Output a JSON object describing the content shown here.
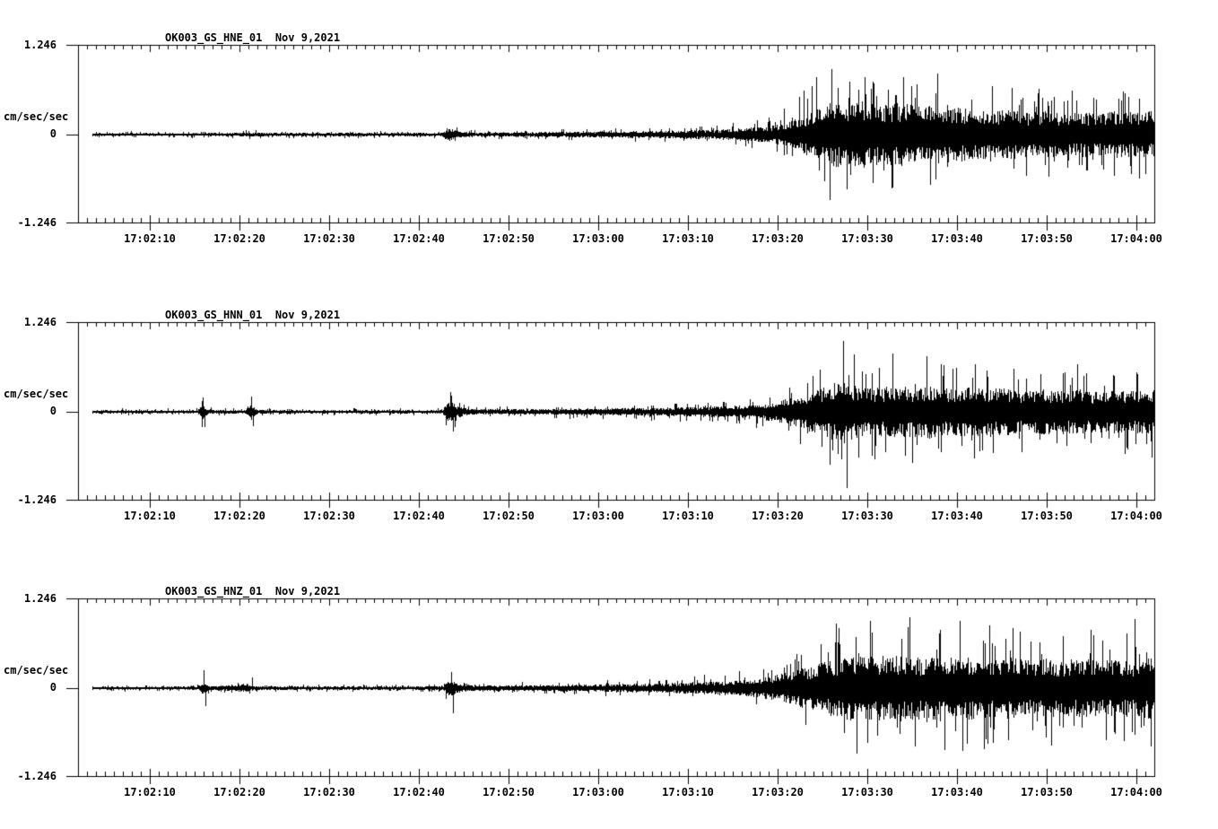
{
  "page": {
    "background": "#ffffff",
    "foreground": "#000000"
  },
  "axis": {
    "unit_label": "cm/sec/sec",
    "y_top_label": "1.246",
    "y_zero_label": "0",
    "y_bottom_label": "-1.246",
    "ylim": [
      -1.246,
      1.246
    ],
    "x_tick_labels": [
      "17:02:10",
      "17:02:20",
      "17:02:30",
      "17:02:40",
      "17:02:50",
      "17:03:00",
      "17:03:10",
      "17:03:20",
      "17:03:30",
      "17:03:40",
      "17:03:50",
      "17:04:00"
    ],
    "x_start": "17:02:02",
    "x_end": "17:04:02",
    "major_tick_interval_sec": 10,
    "minor_tick_interval_sec": 1
  },
  "chart_data": [
    {
      "type": "line",
      "title": "OK003_GS_HNE_01  Nov 9,2021",
      "channel_id": "OK003_GS_HNE_01",
      "date": "Nov 9,2021",
      "ylabel": "cm/sec/sec",
      "ylim": [
        -1.246,
        1.246
      ],
      "x_range": [
        "17:02:02",
        "17:04:02"
      ],
      "grid": false,
      "seed": 101,
      "envelope_sec_after_170200_vs_amp": [
        [
          3.6,
          0.03
        ],
        [
          18,
          0.03
        ],
        [
          21.5,
          0.045
        ],
        [
          23,
          0.032
        ],
        [
          30,
          0.032
        ],
        [
          40,
          0.034
        ],
        [
          42.5,
          0.04
        ],
        [
          43.3,
          0.125
        ],
        [
          44.5,
          0.06
        ],
        [
          46,
          0.045
        ],
        [
          52,
          0.045
        ],
        [
          58,
          0.055
        ],
        [
          64,
          0.065
        ],
        [
          69,
          0.075
        ],
        [
          73,
          0.095
        ],
        [
          76,
          0.12
        ],
        [
          79,
          0.16
        ],
        [
          81,
          0.23
        ],
        [
          83,
          0.38
        ],
        [
          84.5,
          0.52
        ],
        [
          86,
          0.62
        ],
        [
          88,
          0.56
        ],
        [
          90,
          0.64
        ],
        [
          92,
          0.56
        ],
        [
          94,
          0.6
        ],
        [
          96,
          0.52
        ],
        [
          98,
          0.58
        ],
        [
          100,
          0.52
        ],
        [
          102,
          0.48
        ],
        [
          104,
          0.44
        ],
        [
          106,
          0.47
        ],
        [
          108,
          0.42
        ],
        [
          110,
          0.45
        ],
        [
          112,
          0.4
        ],
        [
          114,
          0.43
        ],
        [
          116,
          0.4
        ],
        [
          118,
          0.44
        ],
        [
          120,
          0.42
        ],
        [
          122,
          0.44
        ]
      ],
      "peak_events_sec_amp": [
        [
          84.3,
          0.8
        ],
        [
          85.2,
          -0.66
        ],
        [
          88.0,
          0.74
        ],
        [
          92.8,
          -0.74
        ],
        [
          95.5,
          0.7
        ],
        [
          97.0,
          -0.7
        ],
        [
          109,
          0.58
        ],
        [
          118.5,
          0.6
        ],
        [
          121,
          -0.55
        ]
      ]
    },
    {
      "type": "line",
      "title": "OK003_GS_HNN_01  Nov 9,2021",
      "channel_id": "OK003_GS_HNN_01",
      "date": "Nov 9,2021",
      "ylabel": "cm/sec/sec",
      "ylim": [
        -1.246,
        1.246
      ],
      "x_range": [
        "17:02:02",
        "17:04:02"
      ],
      "grid": false,
      "seed": 202,
      "envelope_sec_after_170200_vs_amp": [
        [
          3.6,
          0.03
        ],
        [
          15.3,
          0.03
        ],
        [
          15.8,
          0.15
        ],
        [
          16.5,
          0.045
        ],
        [
          20.6,
          0.032
        ],
        [
          21.2,
          0.16
        ],
        [
          22,
          0.045
        ],
        [
          24,
          0.03
        ],
        [
          40,
          0.033
        ],
        [
          42.6,
          0.038
        ],
        [
          43.3,
          0.24
        ],
        [
          44.3,
          0.12
        ],
        [
          45.5,
          0.06
        ],
        [
          50,
          0.05
        ],
        [
          56,
          0.06
        ],
        [
          62,
          0.07
        ],
        [
          67,
          0.08
        ],
        [
          71,
          0.095
        ],
        [
          75,
          0.115
        ],
        [
          78,
          0.15
        ],
        [
          80,
          0.2
        ],
        [
          82,
          0.28
        ],
        [
          84,
          0.4
        ],
        [
          86,
          0.52
        ],
        [
          87.5,
          0.6
        ],
        [
          89,
          0.48
        ],
        [
          91,
          0.44
        ],
        [
          93,
          0.5
        ],
        [
          95,
          0.46
        ],
        [
          97,
          0.5
        ],
        [
          99,
          0.44
        ],
        [
          101,
          0.48
        ],
        [
          103,
          0.43
        ],
        [
          105,
          0.46
        ],
        [
          107,
          0.41
        ],
        [
          109,
          0.44
        ],
        [
          111,
          0.4
        ],
        [
          113,
          0.43
        ],
        [
          115,
          0.39
        ],
        [
          117,
          0.42
        ],
        [
          119,
          0.4
        ],
        [
          121,
          0.43
        ],
        [
          122,
          0.42
        ]
      ],
      "peak_events_sec_amp": [
        [
          15.9,
          0.2
        ],
        [
          16.1,
          -0.22
        ],
        [
          21.3,
          0.21
        ],
        [
          21.5,
          -0.2
        ],
        [
          43.5,
          0.28
        ],
        [
          43.8,
          -0.28
        ],
        [
          87.3,
          1.0
        ],
        [
          87.7,
          -1.07
        ],
        [
          90.5,
          -0.62
        ],
        [
          95.0,
          -0.72
        ],
        [
          99.5,
          0.6
        ],
        [
          104,
          -0.58
        ],
        [
          112,
          0.55
        ],
        [
          120,
          0.55
        ]
      ]
    },
    {
      "type": "line",
      "title": "OK003_GS_HNZ_01  Nov 9,2021",
      "channel_id": "OK003_GS_HNZ_01",
      "date": "Nov 9,2021",
      "ylabel": "cm/sec/sec",
      "ylim": [
        -1.246,
        1.246
      ],
      "x_range": [
        "17:02:02",
        "17:04:02"
      ],
      "grid": false,
      "seed": 303,
      "envelope_sec_after_170200_vs_amp": [
        [
          3.6,
          0.03
        ],
        [
          15.3,
          0.03
        ],
        [
          15.8,
          0.13
        ],
        [
          16.6,
          0.042
        ],
        [
          20.8,
          0.075
        ],
        [
          21.6,
          0.036
        ],
        [
          35,
          0.034
        ],
        [
          40,
          0.038
        ],
        [
          42.7,
          0.045
        ],
        [
          43.4,
          0.16
        ],
        [
          44.6,
          0.085
        ],
        [
          46,
          0.055
        ],
        [
          52,
          0.055
        ],
        [
          58,
          0.065
        ],
        [
          63,
          0.08
        ],
        [
          68,
          0.095
        ],
        [
          72,
          0.115
        ],
        [
          75,
          0.14
        ],
        [
          78,
          0.185
        ],
        [
          80,
          0.25
        ],
        [
          82,
          0.33
        ],
        [
          84,
          0.43
        ],
        [
          86,
          0.54
        ],
        [
          88,
          0.62
        ],
        [
          90,
          0.66
        ],
        [
          92,
          0.6
        ],
        [
          94,
          0.64
        ],
        [
          96,
          0.58
        ],
        [
          98,
          0.62
        ],
        [
          100,
          0.58
        ],
        [
          102,
          0.61
        ],
        [
          104,
          0.55
        ],
        [
          106,
          0.58
        ],
        [
          108,
          0.53
        ],
        [
          110,
          0.56
        ],
        [
          112,
          0.52
        ],
        [
          114,
          0.56
        ],
        [
          116,
          0.52
        ],
        [
          118,
          0.55
        ],
        [
          120,
          0.53
        ],
        [
          121.5,
          0.58
        ],
        [
          122,
          0.52
        ]
      ],
      "peak_events_sec_amp": [
        [
          16.0,
          0.25
        ],
        [
          16.2,
          -0.25
        ],
        [
          21.4,
          0.15
        ],
        [
          43.8,
          -0.35
        ],
        [
          86.5,
          0.9
        ],
        [
          88.8,
          -0.92
        ],
        [
          94.5,
          0.85
        ],
        [
          100.3,
          0.95
        ],
        [
          103,
          -0.85
        ],
        [
          110.5,
          -0.8
        ],
        [
          119.8,
          0.97
        ]
      ]
    }
  ]
}
